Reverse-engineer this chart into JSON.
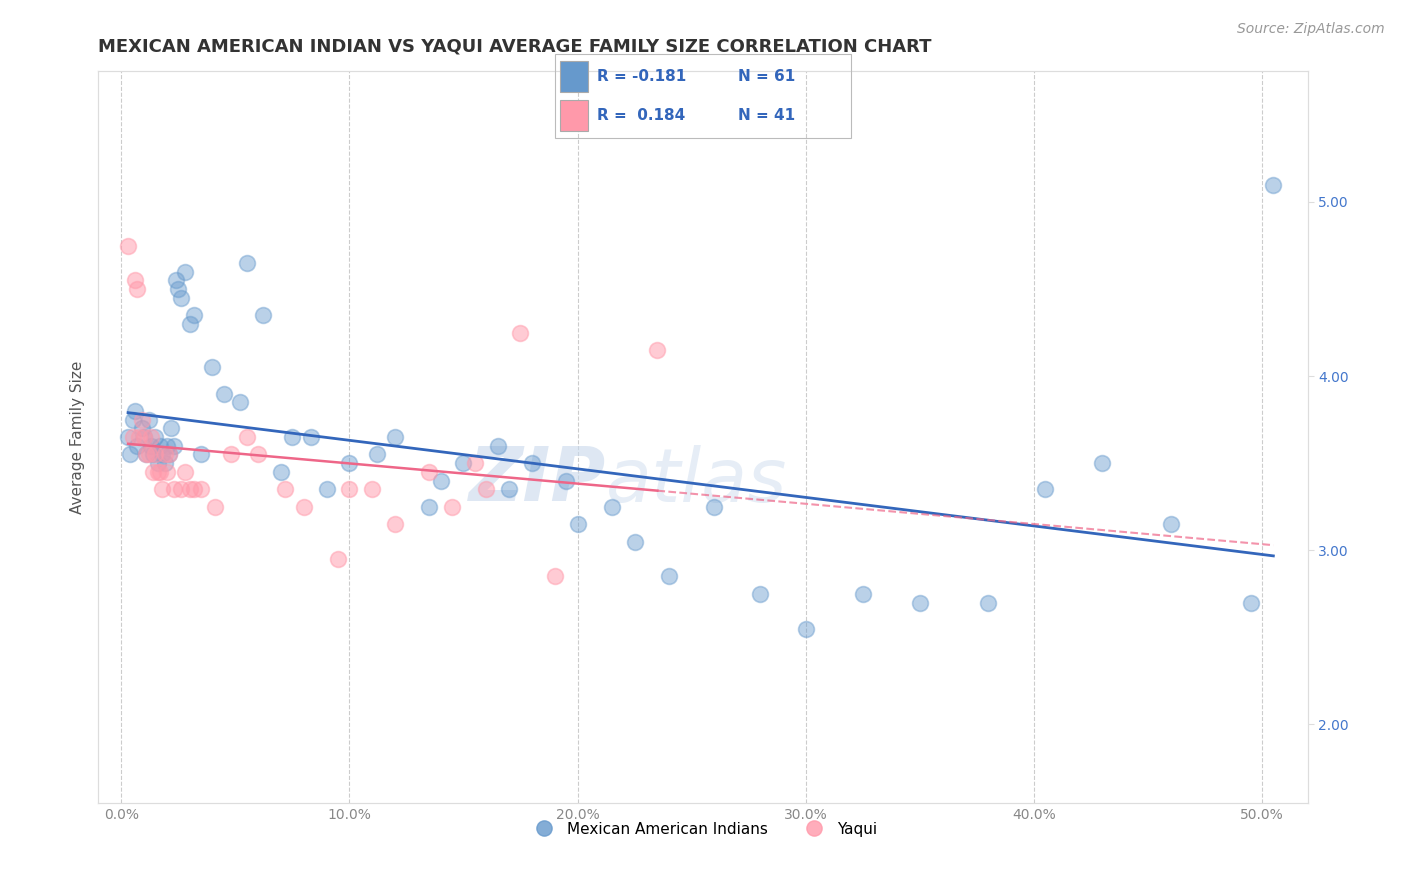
{
  "title": "MEXICAN AMERICAN INDIAN VS YAQUI AVERAGE FAMILY SIZE CORRELATION CHART",
  "source": "Source: ZipAtlas.com",
  "xlabel_ticks": [
    "0.0%",
    "10.0%",
    "20.0%",
    "30.0%",
    "40.0%",
    "50.0%"
  ],
  "xlabel_vals": [
    0.0,
    10.0,
    20.0,
    30.0,
    40.0,
    50.0
  ],
  "ylabel": "Average Family Size",
  "ylabel_right_ticks": [
    2.0,
    3.0,
    4.0,
    5.0
  ],
  "xlim": [
    -1.0,
    52.0
  ],
  "ylim": [
    1.55,
    5.75
  ],
  "legend_label_blue": "Mexican American Indians",
  "legend_label_pink": "Yaqui",
  "blue_color": "#6699CC",
  "pink_color": "#FF99AA",
  "blue_line_color": "#3366BB",
  "pink_line_color": "#EE6688",
  "watermark_zip": "ZIP",
  "watermark_atlas": "atlas",
  "blue_x": [
    0.3,
    0.4,
    0.5,
    0.6,
    0.7,
    0.9,
    1.0,
    1.1,
    1.2,
    1.3,
    1.4,
    1.5,
    1.6,
    1.7,
    1.8,
    1.9,
    2.0,
    2.1,
    2.2,
    2.3,
    2.4,
    2.5,
    2.6,
    2.8,
    3.0,
    3.2,
    3.5,
    4.0,
    4.5,
    5.2,
    5.5,
    6.2,
    7.0,
    7.5,
    8.3,
    9.0,
    10.0,
    11.2,
    12.0,
    13.5,
    14.0,
    15.0,
    16.5,
    17.0,
    18.0,
    19.5,
    20.0,
    21.5,
    22.5,
    24.0,
    26.0,
    28.0,
    30.0,
    32.5,
    35.0,
    38.0,
    40.5,
    43.0,
    46.0,
    49.5,
    50.5
  ],
  "blue_y": [
    3.65,
    3.55,
    3.75,
    3.8,
    3.6,
    3.7,
    3.65,
    3.55,
    3.75,
    3.6,
    3.55,
    3.65,
    3.5,
    3.6,
    3.55,
    3.5,
    3.6,
    3.55,
    3.7,
    3.6,
    4.55,
    4.5,
    4.45,
    4.6,
    4.3,
    4.35,
    3.55,
    4.05,
    3.9,
    3.85,
    4.65,
    4.35,
    3.45,
    3.65,
    3.65,
    3.35,
    3.5,
    3.55,
    3.65,
    3.25,
    3.4,
    3.5,
    3.6,
    3.35,
    3.5,
    3.4,
    3.15,
    3.25,
    3.05,
    2.85,
    3.25,
    2.75,
    2.55,
    2.75,
    2.7,
    2.7,
    3.35,
    3.5,
    3.15,
    2.7,
    5.1
  ],
  "pink_x": [
    0.3,
    0.5,
    0.6,
    0.7,
    0.8,
    0.9,
    1.0,
    1.1,
    1.2,
    1.3,
    1.4,
    1.5,
    1.6,
    1.7,
    1.8,
    1.9,
    2.0,
    2.1,
    2.3,
    2.6,
    2.8,
    3.0,
    3.2,
    3.5,
    4.1,
    4.8,
    5.5,
    6.0,
    7.2,
    8.0,
    9.5,
    10.0,
    11.0,
    12.0,
    13.5,
    14.5,
    15.5,
    16.0,
    17.5,
    19.0,
    23.5
  ],
  "pink_y": [
    4.75,
    3.65,
    4.55,
    4.5,
    3.65,
    3.75,
    3.65,
    3.55,
    3.55,
    3.65,
    3.45,
    3.55,
    3.45,
    3.45,
    3.35,
    3.55,
    3.45,
    3.55,
    3.35,
    3.35,
    3.45,
    3.35,
    3.35,
    3.35,
    3.25,
    3.55,
    3.65,
    3.55,
    3.35,
    3.25,
    2.95,
    3.35,
    3.35,
    3.15,
    3.45,
    3.25,
    3.5,
    3.35,
    4.25,
    2.85,
    4.15
  ],
  "title_fontsize": 13,
  "axis_label_fontsize": 11,
  "tick_fontsize": 10,
  "source_fontsize": 10
}
